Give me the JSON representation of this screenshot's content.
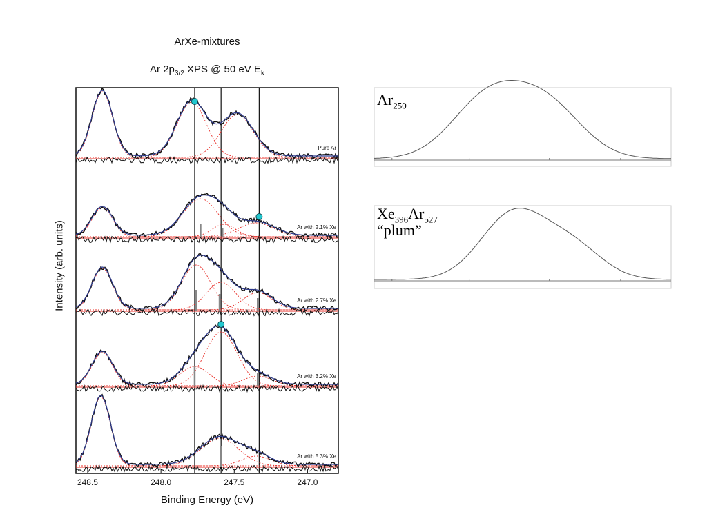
{
  "chart_data": [
    {
      "type": "line",
      "title": "ArXe-mixtures",
      "subtitle_parts": {
        "pre": "Ar 2p",
        "sub": "3/2",
        "mid": " XPS @ 50 eV E",
        "sub2": "k"
      },
      "xlabel": "Binding Energy (eV)",
      "ylabel": "Intensity (arb. units)",
      "x_reversed": true,
      "xlim": [
        248.58,
        246.79
      ],
      "xticks": [
        248.5,
        248.0,
        247.5,
        247.0
      ],
      "xtick_labels": [
        "248.5",
        "248.0",
        "247.5",
        "247.0"
      ],
      "vertical_lines": [
        247.77,
        247.59,
        247.33
      ],
      "spectra": [
        {
          "label": "Pure Ar",
          "peaks": [
            {
              "center": 248.4,
              "height": 0.95,
              "width": 0.07
            },
            {
              "center": 247.79,
              "height": 0.8,
              "width": 0.1
            },
            {
              "center": 247.48,
              "height": 0.62,
              "width": 0.11
            }
          ],
          "markers": [
            {
              "x": 247.77,
              "y": 0.82
            }
          ],
          "bars": []
        },
        {
          "label": "Ar with 2.1% Xe",
          "peaks": [
            {
              "center": 248.4,
              "height": 0.42,
              "width": 0.07
            },
            {
              "center": 247.73,
              "height": 0.55,
              "width": 0.12
            },
            {
              "center": 247.57,
              "height": 0.18,
              "width": 0.08
            },
            {
              "center": 247.35,
              "height": 0.2,
              "width": 0.12
            }
          ],
          "markers": [
            {
              "x": 247.33,
              "y": 0.3
            }
          ],
          "bars": [
            {
              "x": 247.73,
              "h": 0.2
            },
            {
              "x": 247.58,
              "h": 0.13
            }
          ]
        },
        {
          "label": "Ar with 2.7% Xe",
          "peaks": [
            {
              "center": 248.4,
              "height": 0.6,
              "width": 0.07
            },
            {
              "center": 247.76,
              "height": 0.65,
              "width": 0.1
            },
            {
              "center": 247.59,
              "height": 0.4,
              "width": 0.1
            },
            {
              "center": 247.34,
              "height": 0.25,
              "width": 0.1
            }
          ],
          "markers": [],
          "bars": [
            {
              "x": 247.76,
              "h": 0.3
            },
            {
              "x": 247.6,
              "h": 0.24
            },
            {
              "x": 247.34,
              "h": 0.18
            }
          ]
        },
        {
          "label": "Ar with 3.2% Xe",
          "peaks": [
            {
              "center": 248.4,
              "height": 0.48,
              "width": 0.07
            },
            {
              "center": 247.77,
              "height": 0.28,
              "width": 0.1
            },
            {
              "center": 247.59,
              "height": 0.78,
              "width": 0.11
            },
            {
              "center": 247.34,
              "height": 0.14,
              "width": 0.1
            }
          ],
          "markers": [
            {
              "x": 247.59,
              "y": 0.9
            }
          ],
          "bars": [
            {
              "x": 247.77,
              "h": 0.3
            },
            {
              "x": 247.34,
              "h": 0.2
            }
          ]
        },
        {
          "label": "Ar with 5.3% Xe",
          "peaks": [
            {
              "center": 248.41,
              "height": 1.0,
              "width": 0.065
            },
            {
              "center": 247.6,
              "height": 0.4,
              "width": 0.13
            },
            {
              "center": 247.35,
              "height": 0.14,
              "width": 0.1
            }
          ],
          "markers": [],
          "bars": [
            {
              "x": 247.59,
              "h": 0.3
            }
          ]
        }
      ]
    },
    {
      "type": "line",
      "label_parts": [
        {
          "text": "Ar"
        },
        {
          "text": "250",
          "sub": true
        }
      ],
      "curve": [
        {
          "center": 0.38,
          "height": 0.87,
          "width": 0.12
        },
        {
          "center": 0.58,
          "height": 0.78,
          "width": 0.12
        }
      ]
    },
    {
      "type": "line",
      "label_parts": [
        {
          "text": "Xe"
        },
        {
          "text": "396",
          "sub": true
        },
        {
          "text": "Ar"
        },
        {
          "text": "527",
          "sub": true
        }
      ],
      "label_line2": "“plum”",
      "curve": [
        {
          "center": 0.47,
          "height": 0.95,
          "width": 0.11
        },
        {
          "center": 0.67,
          "height": 0.45,
          "width": 0.1
        }
      ]
    }
  ],
  "colors": {
    "data": "#111111",
    "fit": "#2e3a8c",
    "component": "#e8302a",
    "marker": "#23c7cf",
    "axis": "#111111",
    "side_curve": "#555555"
  }
}
